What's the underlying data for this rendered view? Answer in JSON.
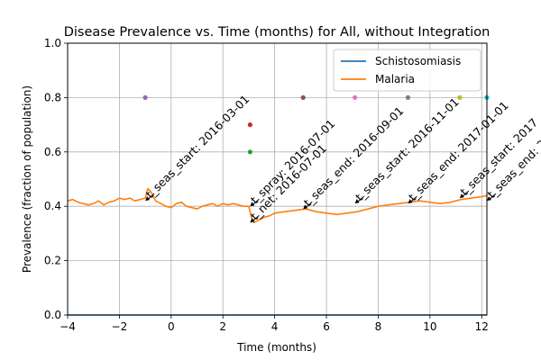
{
  "chart_data": {
    "type": "line",
    "title": "Disease Prevalence vs. Time (months) for All, without Integration",
    "xlabel": "Time (months)",
    "ylabel": "Prevalence (fraction of population)",
    "xlim": [
      -4,
      12.2
    ],
    "ylim": [
      0,
      1
    ],
    "xticks": [
      -4,
      -2,
      0,
      2,
      4,
      6,
      8,
      10,
      12
    ],
    "yticks": [
      0.0,
      0.2,
      0.4,
      0.6,
      0.8,
      1.0
    ],
    "xtick_labels": [
      "−4",
      "−2",
      "0",
      "2",
      "4",
      "6",
      "8",
      "10",
      "12"
    ],
    "ytick_labels": [
      "0.0",
      "0.2",
      "0.4",
      "0.6",
      "0.8",
      "1.0"
    ],
    "grid": true,
    "legend_position": "top-right",
    "series": [
      {
        "name": "Schistosomiasis",
        "color": "#1f77b4",
        "x": [
          -4,
          12.2
        ],
        "y": [
          0.0,
          0.0
        ]
      },
      {
        "name": "Malaria",
        "color": "#ff7f0e",
        "x": [
          -4.0,
          -3.8,
          -3.6,
          -3.4,
          -3.2,
          -3.0,
          -2.8,
          -2.6,
          -2.4,
          -2.2,
          -2.0,
          -1.8,
          -1.6,
          -1.4,
          -1.2,
          -1.0,
          -0.9,
          -0.8,
          -0.7,
          -0.6,
          -0.4,
          -0.2,
          0.0,
          0.2,
          0.4,
          0.6,
          0.8,
          1.0,
          1.2,
          1.4,
          1.6,
          1.8,
          2.0,
          2.2,
          2.4,
          2.6,
          2.8,
          3.0,
          3.05,
          3.1,
          3.2,
          3.4,
          3.6,
          3.8,
          4.0,
          4.4,
          4.8,
          5.2,
          5.6,
          6.0,
          6.4,
          6.8,
          7.2,
          7.6,
          8.0,
          8.4,
          8.8,
          9.2,
          9.6,
          10.0,
          10.4,
          10.8,
          11.2,
          11.6,
          12.0,
          12.2
        ],
        "y": [
          0.42,
          0.425,
          0.415,
          0.41,
          0.405,
          0.41,
          0.42,
          0.405,
          0.415,
          0.42,
          0.43,
          0.425,
          0.43,
          0.42,
          0.425,
          0.43,
          0.465,
          0.455,
          0.44,
          0.42,
          0.41,
          0.4,
          0.395,
          0.41,
          0.415,
          0.4,
          0.395,
          0.39,
          0.4,
          0.405,
          0.41,
          0.4,
          0.41,
          0.405,
          0.41,
          0.405,
          0.4,
          0.4,
          0.38,
          0.36,
          0.34,
          0.35,
          0.36,
          0.365,
          0.375,
          0.38,
          0.385,
          0.39,
          0.38,
          0.375,
          0.37,
          0.375,
          0.38,
          0.39,
          0.4,
          0.405,
          0.41,
          0.415,
          0.42,
          0.415,
          0.41,
          0.415,
          0.425,
          0.43,
          0.435,
          0.44
        ]
      }
    ],
    "scatter_points": [
      {
        "x": -1.0,
        "y": 0.8,
        "color": "#9467bd"
      },
      {
        "x": 3.05,
        "y": 0.7,
        "color": "#d62728"
      },
      {
        "x": 3.05,
        "y": 0.6,
        "color": "#2ca02c"
      },
      {
        "x": 5.1,
        "y": 0.8,
        "color": "#8c564b"
      },
      {
        "x": 7.1,
        "y": 0.8,
        "color": "#e377c2"
      },
      {
        "x": 9.15,
        "y": 0.8,
        "color": "#7f7f7f"
      },
      {
        "x": 11.15,
        "y": 0.8,
        "color": "#bcbd22"
      },
      {
        "x": 12.2,
        "y": 0.8,
        "color": "#17becf"
      }
    ],
    "annotations": [
      {
        "text": "t_seas_start: 2016-03-01",
        "x": -1.0,
        "y": 0.42
      },
      {
        "text": "t_spray: 2016-07-01",
        "x": 3.05,
        "y": 0.4
      },
      {
        "text": "t_net: 2016-07-01",
        "x": 3.05,
        "y": 0.34
      },
      {
        "text": "t_seas_end: 2016-09-01",
        "x": 5.1,
        "y": 0.39
      },
      {
        "text": "t_seas_start: 2016-11-01",
        "x": 7.1,
        "y": 0.41
      },
      {
        "text": "t_seas_end: 2017-01-01",
        "x": 9.15,
        "y": 0.41
      },
      {
        "text": "t_seas_start: 2017",
        "x": 11.15,
        "y": 0.43
      },
      {
        "text": "t_seas_end: 20",
        "x": 12.2,
        "y": 0.42
      }
    ]
  }
}
